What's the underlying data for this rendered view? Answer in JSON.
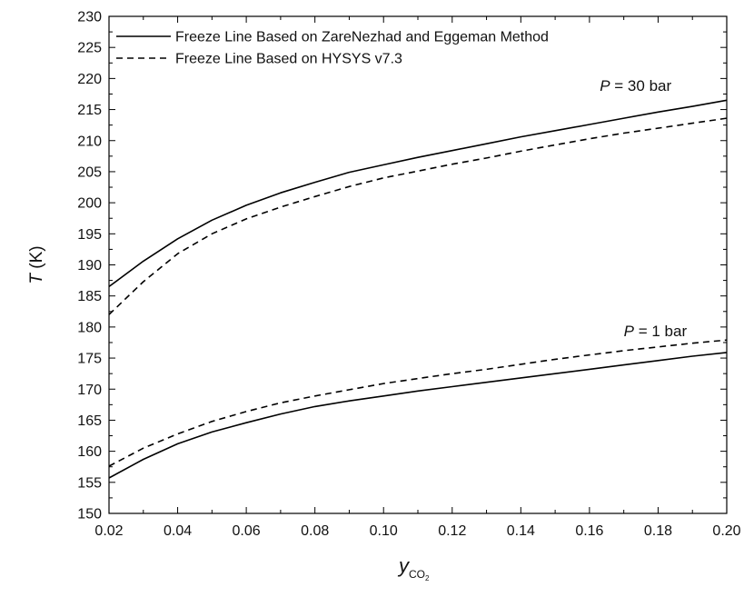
{
  "chart_data": {
    "type": "line",
    "xlim": [
      0.02,
      0.2
    ],
    "ylim": [
      150,
      230
    ],
    "x_ticks": [
      "0.02",
      "0.04",
      "0.06",
      "0.08",
      "0.10",
      "0.12",
      "0.14",
      "0.16",
      "0.18",
      "0.20"
    ],
    "y_ticks": [
      "150",
      "155",
      "160",
      "165",
      "170",
      "175",
      "180",
      "185",
      "190",
      "195",
      "200",
      "205",
      "210",
      "215",
      "220",
      "225",
      "230"
    ],
    "xlabel": {
      "main": "y",
      "sub": "CO",
      "subsub": "2"
    },
    "ylabel": {
      "var": "T",
      "unit": " (K)"
    },
    "legend": {
      "position": "top-left",
      "entries": [
        {
          "label": "Freeze Line Based on ZareNezhad and Eggeman Method",
          "style": "solid"
        },
        {
          "label": "Freeze Line Based on HYSYS v7.3",
          "style": "dashed"
        }
      ]
    },
    "annotations": [
      {
        "var": "P",
        "text": " = 30 bar",
        "x": 0.163,
        "y": 218
      },
      {
        "var": "P",
        "text": " = 1 bar",
        "x": 0.17,
        "y": 178.5
      }
    ],
    "series": [
      {
        "name": "Freeze Line Based on ZareNezhad and Eggeman Method",
        "group": "P = 30 bar",
        "style": "solid",
        "x": [
          0.02,
          0.03,
          0.04,
          0.05,
          0.06,
          0.07,
          0.08,
          0.09,
          0.1,
          0.11,
          0.12,
          0.13,
          0.14,
          0.15,
          0.16,
          0.17,
          0.18,
          0.19,
          0.2
        ],
        "y": [
          186.5,
          190.6,
          194.2,
          197.2,
          199.6,
          201.6,
          203.3,
          204.9,
          206.1,
          207.3,
          208.4,
          209.5,
          210.6,
          211.6,
          212.6,
          213.6,
          214.6,
          215.5,
          216.5
        ]
      },
      {
        "name": "Freeze Line Based on HYSYS v7.3",
        "group": "P = 30 bar",
        "style": "dashed",
        "x": [
          0.02,
          0.03,
          0.04,
          0.05,
          0.06,
          0.07,
          0.08,
          0.09,
          0.1,
          0.11,
          0.12,
          0.13,
          0.14,
          0.15,
          0.16,
          0.17,
          0.18,
          0.19,
          0.2
        ],
        "y": [
          182.0,
          187.3,
          191.8,
          195.0,
          197.4,
          199.3,
          201.0,
          202.6,
          204.0,
          205.1,
          206.2,
          207.2,
          208.3,
          209.3,
          210.3,
          211.2,
          212.0,
          212.8,
          213.6
        ]
      },
      {
        "name": "Freeze Line Based on ZareNezhad and Eggeman Method",
        "group": "P = 1 bar",
        "style": "solid",
        "x": [
          0.02,
          0.03,
          0.04,
          0.05,
          0.06,
          0.07,
          0.08,
          0.09,
          0.1,
          0.11,
          0.12,
          0.13,
          0.14,
          0.15,
          0.16,
          0.17,
          0.18,
          0.19,
          0.2
        ],
        "y": [
          155.7,
          158.7,
          161.2,
          163.1,
          164.6,
          166.0,
          167.2,
          168.1,
          168.9,
          169.7,
          170.4,
          171.1,
          171.8,
          172.5,
          173.2,
          173.9,
          174.6,
          175.3,
          175.9
        ]
      },
      {
        "name": "Freeze Line Based on HYSYS v7.3",
        "group": "P = 1 bar",
        "style": "dashed",
        "x": [
          0.02,
          0.03,
          0.04,
          0.05,
          0.06,
          0.07,
          0.08,
          0.09,
          0.1,
          0.11,
          0.12,
          0.13,
          0.14,
          0.15,
          0.16,
          0.17,
          0.18,
          0.19,
          0.2
        ],
        "y": [
          157.6,
          160.5,
          162.8,
          164.8,
          166.4,
          167.8,
          168.9,
          169.9,
          170.9,
          171.7,
          172.5,
          173.2,
          174.0,
          174.8,
          175.5,
          176.2,
          176.8,
          177.4,
          177.9
        ]
      }
    ]
  }
}
